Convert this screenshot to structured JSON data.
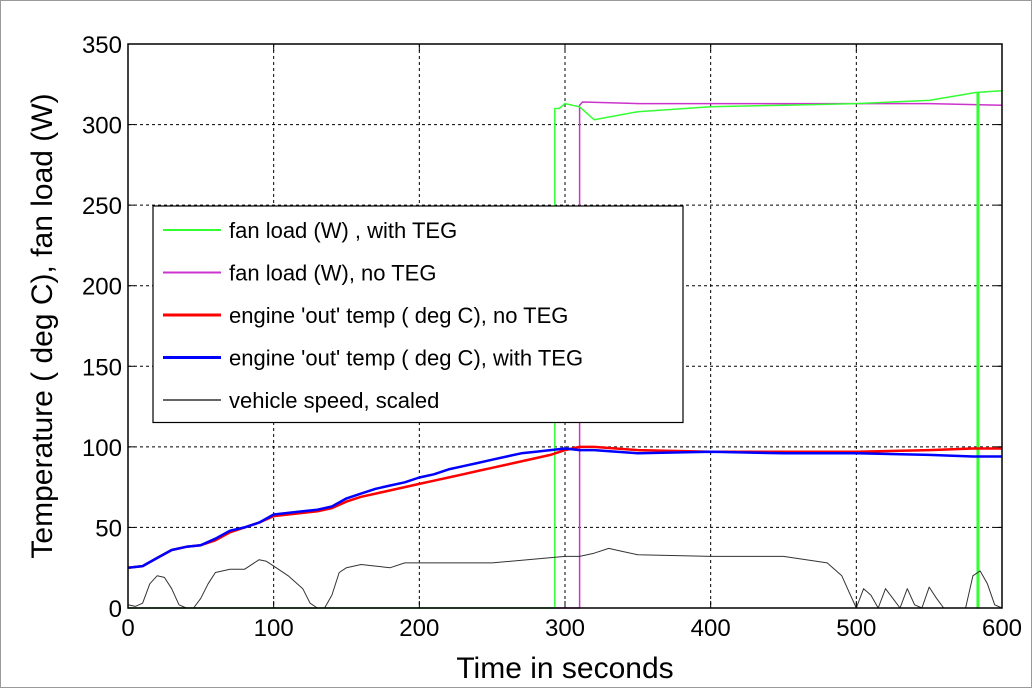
{
  "chart_data": {
    "type": "line",
    "xlabel": "Time in seconds",
    "ylabel": "Temperature ( deg C), fan load (W)",
    "xlim": [
      0,
      600
    ],
    "ylim": [
      0,
      350
    ],
    "xticks": [
      0,
      100,
      200,
      300,
      400,
      500,
      600
    ],
    "yticks": [
      0,
      50,
      100,
      150,
      200,
      250,
      300,
      350
    ],
    "grid": true,
    "legend_position": "center-left",
    "series": [
      {
        "name": "fan load (W) , with TEG",
        "color": "#33ff33",
        "x": [
          0,
          293,
          293,
          296,
          300,
          305,
          310,
          320,
          350,
          400,
          450,
          500,
          550,
          583,
          583,
          584,
          584,
          600
        ],
        "y": [
          0,
          0,
          310,
          310,
          313,
          312,
          311,
          303,
          308,
          311,
          312,
          313,
          315,
          320,
          0,
          0,
          320,
          321
        ]
      },
      {
        "name": "fan load (W), no TEG",
        "color": "#cc33cc",
        "x": [
          0,
          310,
          310,
          312,
          350,
          400,
          450,
          500,
          550,
          600
        ],
        "y": [
          0,
          0,
          312,
          314,
          313,
          313,
          313,
          313,
          313,
          312
        ]
      },
      {
        "name": "engine 'out' temp ( deg C), no TEG",
        "color": "#ff0000",
        "x": [
          0,
          10,
          20,
          30,
          40,
          50,
          60,
          70,
          80,
          90,
          100,
          110,
          120,
          130,
          140,
          150,
          160,
          170,
          180,
          190,
          200,
          210,
          220,
          230,
          240,
          250,
          260,
          270,
          280,
          290,
          300,
          310,
          320,
          350,
          400,
          450,
          500,
          550,
          580,
          600
        ],
        "y": [
          25,
          26,
          31,
          36,
          38,
          39,
          42,
          47,
          50,
          53,
          57,
          58,
          59,
          60,
          62,
          66,
          69,
          71,
          73,
          75,
          77,
          79,
          81,
          83,
          85,
          87,
          89,
          91,
          93,
          95,
          98,
          100,
          100,
          98,
          97,
          97,
          97,
          98,
          99,
          99
        ]
      },
      {
        "name": "engine 'out' temp ( deg C), with TEG",
        "color": "#0000ff",
        "x": [
          0,
          10,
          20,
          30,
          40,
          50,
          60,
          70,
          80,
          90,
          100,
          110,
          120,
          130,
          140,
          150,
          160,
          170,
          180,
          190,
          200,
          210,
          220,
          230,
          240,
          250,
          260,
          270,
          280,
          290,
          300,
          310,
          320,
          350,
          400,
          450,
          500,
          550,
          580,
          600
        ],
        "y": [
          25,
          26,
          31,
          36,
          38,
          39,
          43,
          48,
          50,
          53,
          58,
          59,
          60,
          61,
          63,
          68,
          71,
          74,
          76,
          78,
          81,
          83,
          86,
          88,
          90,
          92,
          94,
          96,
          97,
          98,
          99,
          98,
          98,
          96,
          97,
          96,
          96,
          95,
          94,
          94
        ]
      },
      {
        "name": "vehicle speed, scaled",
        "color": "#333333",
        "x": [
          0,
          5,
          10,
          15,
          20,
          25,
          30,
          35,
          40,
          45,
          50,
          55,
          60,
          70,
          80,
          90,
          95,
          100,
          110,
          120,
          125,
          130,
          135,
          140,
          145,
          150,
          160,
          170,
          180,
          190,
          200,
          250,
          300,
          310,
          320,
          330,
          340,
          350,
          400,
          450,
          480,
          490,
          495,
          500,
          505,
          510,
          515,
          520,
          525,
          530,
          535,
          540,
          545,
          550,
          555,
          560,
          565,
          570,
          575,
          580,
          585,
          590,
          595,
          600
        ],
        "y": [
          2,
          1,
          3,
          15,
          20,
          19,
          12,
          2,
          0,
          0,
          6,
          15,
          22,
          24,
          24,
          30,
          29,
          26,
          20,
          12,
          3,
          0,
          0,
          8,
          22,
          25,
          27,
          26,
          25,
          28,
          28,
          28,
          32,
          32,
          34,
          37,
          35,
          33,
          32,
          32,
          28,
          20,
          10,
          0,
          12,
          8,
          0,
          12,
          6,
          0,
          12,
          2,
          0,
          13,
          6,
          0,
          0,
          0,
          0,
          20,
          23,
          15,
          2,
          0
        ]
      }
    ]
  }
}
